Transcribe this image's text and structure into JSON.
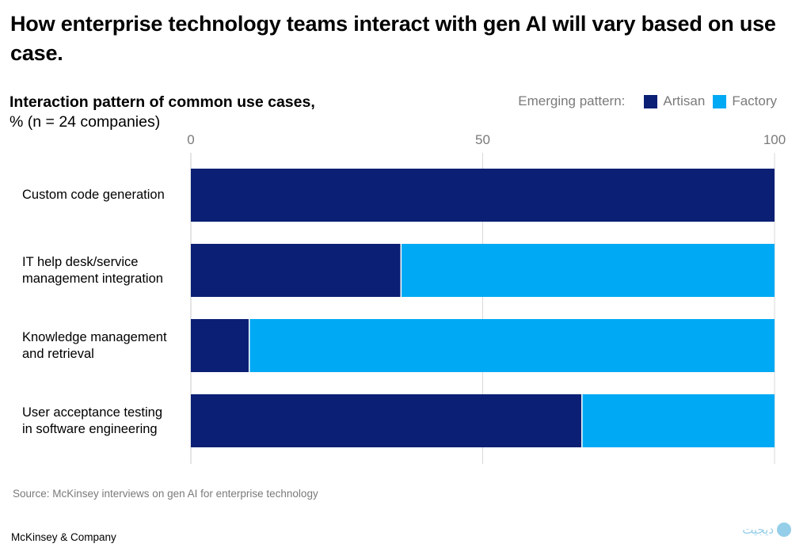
{
  "title": "How enterprise technology teams interact with gen AI will vary based on use case.",
  "subtitle_bold": "Interaction pattern of common use cases,",
  "subtitle_sub": "% (n = 24 companies)",
  "legend_title": "Emerging pattern:",
  "source": "Source: McKinsey interviews on gen AI for enterprise technology",
  "brand": "McKinsey & Company",
  "watermark_text": "ديجيت",
  "colors": {
    "artisan": "#0b1f74",
    "factory": "#00a9f4",
    "grid": "#d9d9d9",
    "axis": "#c8c8c8"
  },
  "chart_data": {
    "type": "bar",
    "orientation": "horizontal",
    "stacked": true,
    "title": "Interaction pattern of common use cases, % (n = 24 companies)",
    "xlabel": "",
    "ylabel": "",
    "xlim": [
      0,
      100
    ],
    "xticks": [
      0,
      50,
      100
    ],
    "legend_position": "top-right",
    "categories": [
      [
        "Custom code generation"
      ],
      [
        "IT help desk/service",
        "management integration"
      ],
      [
        "Knowledge management",
        "and retrieval"
      ],
      [
        "User acceptance testing",
        "in software engineering"
      ]
    ],
    "series": [
      {
        "name": "Artisan",
        "color": "#0b1f74",
        "values": [
          100,
          36,
          10,
          67
        ]
      },
      {
        "name": "Factory",
        "color": "#00a9f4",
        "values": [
          0,
          64,
          90,
          33
        ]
      }
    ]
  }
}
